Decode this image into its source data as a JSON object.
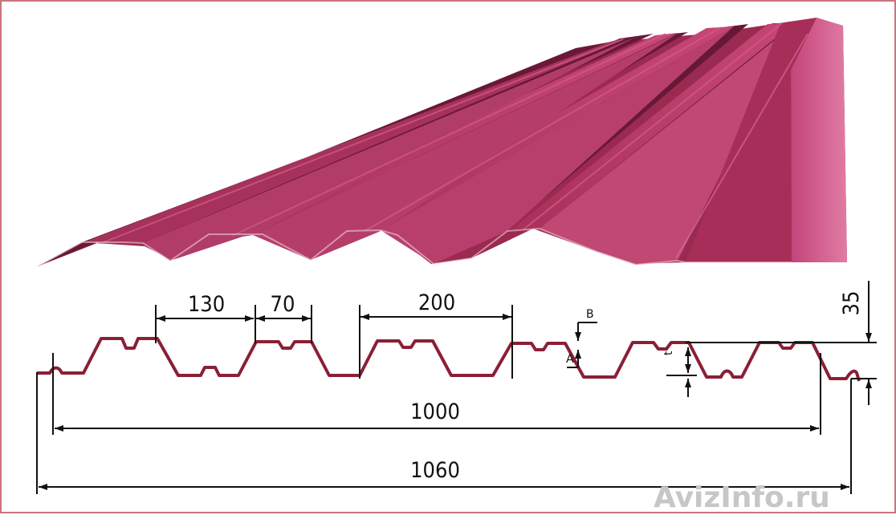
{
  "colors": {
    "sheet_base": "#b2335f",
    "sheet_dark": "#5e1733",
    "sheet_mid": "#8a2448",
    "sheet_light": "#d85d8b",
    "profile_line": "#8b1f35",
    "dimension_line": "#111111",
    "watermark": "#c7c7c7",
    "frame": "#c9747d"
  },
  "icons": {
    "profiled_sheet": "profiled-sheet-3d",
    "cross_section": "profile-cross-section"
  },
  "dimensions": {
    "rib_top_width": "130",
    "rib_bottom_width": "70",
    "rib_pitch": "200",
    "profile_height": "35",
    "working_width": "1000",
    "overall_width": "1060",
    "thickness_mark": "t"
  },
  "markers": {
    "a": "A",
    "b": "B"
  },
  "watermark": {
    "text": "AvizInfo.ru"
  }
}
